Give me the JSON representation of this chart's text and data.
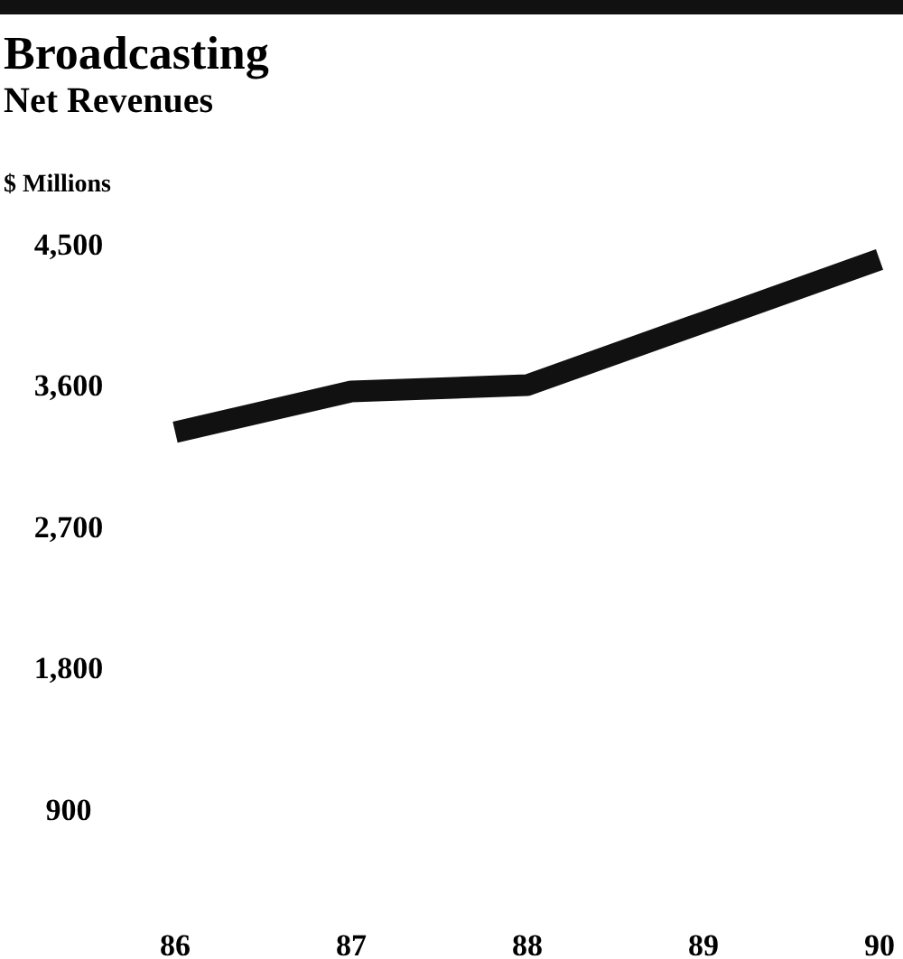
{
  "chart_data": {
    "type": "line",
    "title": "Broadcasting",
    "subtitle": "Net Revenues",
    "ylabel": "$ Millions",
    "categories": [
      "86",
      "87",
      "88",
      "89",
      "90"
    ],
    "series": [
      {
        "color": "#111111",
        "values": [
          3300,
          3560,
          3600,
          4000,
          4400
        ]
      }
    ],
    "ylim": [
      900,
      4500
    ],
    "yticks": [
      {
        "value": 900,
        "label": "900"
      },
      {
        "value": 1800,
        "label": "1,800"
      },
      {
        "value": 2700,
        "label": "2,700"
      },
      {
        "value": 3600,
        "label": "3,600"
      },
      {
        "value": 4500,
        "label": "4,500"
      }
    ],
    "grid": false,
    "marker": "none",
    "line_style": "solid"
  }
}
